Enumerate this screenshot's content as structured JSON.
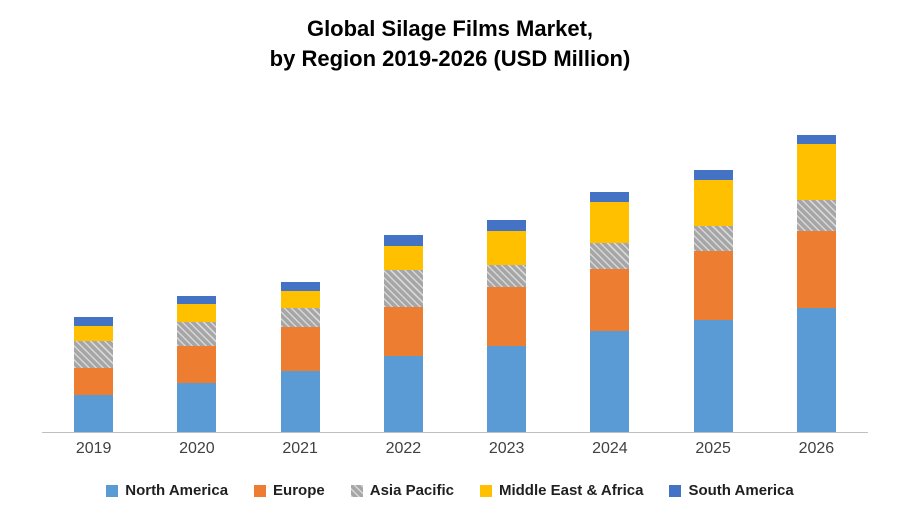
{
  "title": {
    "line1": "Global Silage Films Market,",
    "line2": "by Region 2019-2026 (USD Million)"
  },
  "chart_data": {
    "type": "bar",
    "stacked": true,
    "title": "Global Silage Films Market, by Region 2019-2026 (USD Million)",
    "xlabel": "",
    "ylabel": "",
    "units": "USD Million",
    "axis_value_labels_visible": false,
    "values_estimated_from_pixels": true,
    "ylim": [
      0,
      660
    ],
    "grid": false,
    "legend_position": "bottom",
    "categories": [
      "2019",
      "2020",
      "2021",
      "2022",
      "2023",
      "2024",
      "2025",
      "2026"
    ],
    "series": [
      {
        "name": "North America",
        "color": "#5B9BD5",
        "pattern": "solid",
        "values": [
          75,
          100,
          125,
          155,
          175,
          205,
          228,
          252
        ]
      },
      {
        "name": "Europe",
        "color": "#ED7D31",
        "pattern": "solid",
        "values": [
          55,
          75,
          88,
          100,
          120,
          128,
          140,
          158
        ]
      },
      {
        "name": "Asia Pacific",
        "color": "#A6A6A6",
        "pattern": "hatch",
        "values": [
          55,
          50,
          40,
          75,
          46,
          52,
          52,
          62
        ]
      },
      {
        "name": "Middle East & Africa",
        "color": "#FFC000",
        "pattern": "solid",
        "values": [
          30,
          35,
          35,
          48,
          68,
          84,
          94,
          114
        ]
      },
      {
        "name": "South America",
        "color": "#4472C4",
        "pattern": "solid",
        "values": [
          20,
          18,
          18,
          23,
          23,
          20,
          20,
          20
        ]
      }
    ]
  }
}
